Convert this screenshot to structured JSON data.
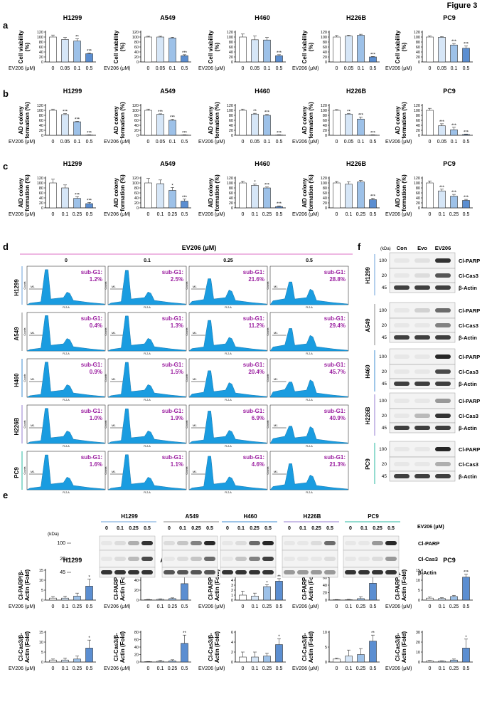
{
  "figure_title": "Figure 3",
  "colors": {
    "bar_control": "#ffffff",
    "bar_light": "#d6e6f7",
    "bar_mid": "#9dc1e8",
    "bar_dark": "#5b8ed1",
    "histogram_fill": "#1a9ce0",
    "subg1_text": "#9b1fa0",
    "pink_line": "#e8a0d8",
    "h1299": "#9cc0e6",
    "a549": "#b0b0b0",
    "h460": "#7fb2e0",
    "h226b": "#b8a8e0",
    "pc9": "#70d0c0"
  },
  "panels": {
    "a": "a",
    "b": "b",
    "c": "c",
    "d": "d",
    "e": "e",
    "f": "f"
  },
  "ev_label": "EV206 (μM)",
  "ev_header": "EV206 (μM)",
  "sig": {
    "one": "*",
    "two": "**",
    "three": "***"
  },
  "chart_data": [
    {
      "id": "a1",
      "type": "bar",
      "title": "H1299",
      "ylabel": "Cell viability (%)",
      "ylabel_lines": [
        "Cell viability",
        "(%)"
      ],
      "categories": [
        "0",
        "0.05",
        "0.1",
        "0.5"
      ],
      "values": [
        100,
        90,
        84,
        33
      ],
      "errors": [
        8,
        8,
        9,
        3
      ],
      "sig": [
        "",
        "",
        "**",
        "***"
      ],
      "ylim": [
        0,
        120
      ],
      "ticks": [
        0,
        20,
        40,
        60,
        80,
        100,
        120
      ]
    },
    {
      "id": "a2",
      "type": "bar",
      "title": "A549",
      "ylabel_lines": [
        "Cell viability",
        "(%)"
      ],
      "categories": [
        "0",
        "0.05",
        "0.1",
        "0.5"
      ],
      "values": [
        100,
        100,
        96,
        25
      ],
      "errors": [
        3,
        3,
        3,
        4
      ],
      "sig": [
        "",
        "",
        "",
        "***"
      ],
      "ylim": [
        0,
        120
      ],
      "ticks": [
        0,
        20,
        40,
        60,
        80,
        100,
        120
      ]
    },
    {
      "id": "a3",
      "type": "bar",
      "title": "H460",
      "ylabel_lines": [
        "Cell viability",
        "(%)"
      ],
      "categories": [
        "0",
        "0.05",
        "0.1",
        "0.5"
      ],
      "values": [
        100,
        89,
        88,
        25
      ],
      "errors": [
        12,
        15,
        10,
        4
      ],
      "sig": [
        "",
        "",
        "",
        "***"
      ],
      "ylim": [
        0,
        120
      ],
      "ticks": [
        0,
        20,
        40,
        60,
        80,
        100,
        120
      ]
    },
    {
      "id": "a4",
      "type": "bar",
      "title": "H226B",
      "ylabel_lines": [
        "Cell viability",
        "(%)"
      ],
      "categories": [
        "0",
        "0.05",
        "0.1",
        "0.5"
      ],
      "values": [
        100,
        104,
        107,
        20
      ],
      "errors": [
        6,
        3,
        4,
        2
      ],
      "sig": [
        "",
        "",
        "",
        "***"
      ],
      "ylim": [
        0,
        120
      ],
      "ticks": [
        0,
        20,
        40,
        60,
        80,
        100,
        120
      ]
    },
    {
      "id": "a5",
      "type": "bar",
      "title": "PC9",
      "ylabel_lines": [
        "Cell viability",
        "(%)"
      ],
      "categories": [
        "0",
        "0.05",
        "0.1",
        "0.5"
      ],
      "values": [
        100,
        99,
        68,
        55
      ],
      "errors": [
        4,
        3,
        6,
        9
      ],
      "sig": [
        "",
        "",
        "***",
        "***"
      ],
      "ylim": [
        0,
        120
      ],
      "ticks": [
        0,
        20,
        40,
        60,
        80,
        100,
        120
      ]
    },
    {
      "id": "b1",
      "type": "bar",
      "title": "H1299",
      "ylabel_lines": [
        "AD colony",
        "formation (%)"
      ],
      "categories": [
        "0",
        "0.05",
        "0.1",
        "0.5"
      ],
      "values": [
        100,
        83,
        54,
        1
      ],
      "errors": [
        5,
        4,
        2,
        1
      ],
      "sig": [
        "",
        "***",
        "***",
        "***"
      ],
      "ylim": [
        0,
        120
      ],
      "ticks": [
        0,
        20,
        40,
        60,
        80,
        100,
        120
      ]
    },
    {
      "id": "b2",
      "type": "bar",
      "title": "A549",
      "ylabel_lines": [
        "AD colony",
        "formation (%)"
      ],
      "categories": [
        "0",
        "0.05",
        "0.1",
        "0.5"
      ],
      "values": [
        100,
        84,
        60,
        1
      ],
      "errors": [
        5,
        2,
        4,
        1
      ],
      "sig": [
        "",
        "***",
        "***",
        "***"
      ],
      "ylim": [
        0,
        120
      ],
      "ticks": [
        0,
        20,
        40,
        60,
        80,
        100,
        120
      ]
    },
    {
      "id": "b3",
      "type": "bar",
      "title": "H460",
      "ylabel_lines": [
        "AD colony",
        "formation (%)"
      ],
      "categories": [
        "0",
        "0.05",
        "0.1",
        "0.5"
      ],
      "values": [
        100,
        85,
        80,
        1
      ],
      "errors": [
        5,
        3,
        4,
        1
      ],
      "sig": [
        "",
        "**",
        "***",
        "***"
      ],
      "ylim": [
        0,
        120
      ],
      "ticks": [
        0,
        20,
        40,
        60,
        80,
        100,
        120
      ]
    },
    {
      "id": "b4",
      "type": "bar",
      "title": "H226B",
      "ylabel_lines": [
        "AD colony",
        "formation (%)"
      ],
      "categories": [
        "0",
        "0.05",
        "0.1",
        "0.5"
      ],
      "values": [
        100,
        85,
        65,
        1
      ],
      "errors": [
        3,
        2,
        8,
        1
      ],
      "sig": [
        "",
        "**",
        "***",
        "***"
      ],
      "ylim": [
        0,
        120
      ],
      "ticks": [
        0,
        20,
        40,
        60,
        80,
        100,
        120
      ]
    },
    {
      "id": "b5",
      "type": "bar",
      "title": "PC9",
      "ylabel_lines": [
        "AD colony",
        "formation (%)"
      ],
      "categories": [
        "0",
        "0.05",
        "0.1",
        "0.5"
      ],
      "values": [
        100,
        38,
        22,
        3
      ],
      "errors": [
        8,
        8,
        10,
        2
      ],
      "sig": [
        "",
        "***",
        "***",
        "***"
      ],
      "ylim": [
        0,
        120
      ],
      "ticks": [
        0,
        20,
        40,
        60,
        80,
        100,
        120
      ]
    },
    {
      "id": "c1",
      "type": "bar",
      "title": "H1299",
      "ylabel_lines": [
        "AID colony",
        "formation (%)"
      ],
      "categories": [
        "0",
        "0.1",
        "0.25",
        "0.5"
      ],
      "values": [
        100,
        80,
        38,
        17
      ],
      "errors": [
        15,
        12,
        7,
        5
      ],
      "sig": [
        "",
        "",
        "***",
        "***"
      ],
      "ylim": [
        0,
        120
      ],
      "ticks": [
        0,
        20,
        40,
        60,
        80,
        100,
        120
      ]
    },
    {
      "id": "c2",
      "type": "bar",
      "title": "A549",
      "ylabel_lines": [
        "AID colony",
        "formation (%)"
      ],
      "categories": [
        "0",
        "0.1",
        "0.25",
        "0.5"
      ],
      "values": [
        100,
        97,
        70,
        27
      ],
      "errors": [
        18,
        15,
        12,
        8
      ],
      "sig": [
        "",
        "",
        "*",
        "***"
      ],
      "ylim": [
        0,
        120
      ],
      "ticks": [
        0,
        20,
        40,
        60,
        80,
        100,
        120
      ]
    },
    {
      "id": "c3",
      "type": "bar",
      "title": "H460",
      "ylabel_lines": [
        "AID colony",
        "formation (%)"
      ],
      "categories": [
        "0",
        "0.1",
        "0.25",
        "0.5"
      ],
      "values": [
        100,
        90,
        80,
        5
      ],
      "errors": [
        7,
        6,
        4,
        3
      ],
      "sig": [
        "",
        "*",
        "***",
        "***"
      ],
      "ylim": [
        0,
        120
      ],
      "ticks": [
        0,
        20,
        40,
        60,
        80,
        100,
        120
      ]
    },
    {
      "id": "c4",
      "type": "bar",
      "title": "H226B",
      "ylabel_lines": [
        "AID colony",
        "formation (%)"
      ],
      "categories": [
        "0",
        "0.1",
        "0.25",
        "0.5"
      ],
      "values": [
        100,
        95,
        104,
        33
      ],
      "errors": [
        6,
        10,
        6,
        6
      ],
      "sig": [
        "",
        "",
        "",
        "***"
      ],
      "ylim": [
        0,
        120
      ],
      "ticks": [
        0,
        20,
        40,
        60,
        80,
        100,
        120
      ]
    },
    {
      "id": "c5",
      "type": "bar",
      "title": "PC9",
      "ylabel_lines": [
        "AID colony",
        "formation (%)"
      ],
      "categories": [
        "0",
        "0.1",
        "0.25",
        "0.5"
      ],
      "values": [
        100,
        68,
        47,
        30
      ],
      "errors": [
        8,
        7,
        7,
        4
      ],
      "sig": [
        "",
        "***",
        "***",
        "***"
      ],
      "ylim": [
        0,
        120
      ],
      "ticks": [
        0,
        20,
        40,
        60,
        80,
        100,
        120
      ]
    },
    {
      "id": "e1",
      "type": "bar",
      "title": "H1299",
      "ylabel_lines": [
        "Cl-PARP/β-",
        "Actin (Fold)"
      ],
      "categories": [
        "0",
        "0.1",
        "0.25",
        "0.5"
      ],
      "values": [
        1,
        1,
        2,
        7
      ],
      "errors": [
        0.8,
        1,
        1.5,
        3.5
      ],
      "sig": [
        "",
        "",
        "",
        "*"
      ],
      "ylim": [
        0,
        15
      ],
      "ticks": [
        0,
        5,
        10,
        15
      ]
    },
    {
      "id": "e2",
      "type": "bar",
      "title": "A549",
      "ylabel_lines": [
        "Cl-PARP/β-",
        "Actin (Fold)"
      ],
      "categories": [
        "0",
        "0.1",
        "0.25",
        "0.5"
      ],
      "values": [
        1,
        1.5,
        3,
        33
      ],
      "errors": [
        0.5,
        1,
        1.5,
        14
      ],
      "sig": [
        "",
        "",
        "",
        "**"
      ],
      "ylim": [
        0,
        60
      ],
      "ticks": [
        0,
        20,
        40,
        60
      ]
    },
    {
      "id": "e3",
      "type": "bar",
      "title": "H460",
      "ylabel_lines": [
        "Cl-PARP/β-",
        "Actin (Fold)"
      ],
      "categories": [
        "0",
        "0.1",
        "0.25",
        "0.5"
      ],
      "values": [
        1,
        0.8,
        2.7,
        3.8
      ],
      "errors": [
        0.8,
        0.6,
        0.4,
        0.5
      ],
      "sig": [
        "",
        "",
        "*",
        "**"
      ],
      "ylim": [
        0,
        6
      ],
      "ticks": [
        0,
        1,
        2,
        3,
        4,
        5,
        6
      ]
    },
    {
      "id": "e4",
      "type": "bar",
      "title": "H226B",
      "ylabel_lines": [
        "Cl-PARP/β-",
        "Actin (Fold)"
      ],
      "categories": [
        "0",
        "0.1",
        "0.25",
        "0.5"
      ],
      "values": [
        1,
        1,
        4,
        45
      ],
      "errors": [
        0.5,
        1,
        5,
        18
      ],
      "sig": [
        "",
        "",
        "",
        "**"
      ],
      "ylim": [
        0,
        80
      ],
      "ticks": [
        0,
        20,
        40,
        60,
        80
      ]
    },
    {
      "id": "e5",
      "type": "bar",
      "title": "PC9",
      "ylabel_lines": [
        "Cl-PARP/β-",
        "Actin (Fold)"
      ],
      "categories": [
        "0",
        "0.1",
        "0.25",
        "0.5"
      ],
      "values": [
        1,
        0.8,
        1.8,
        11.5
      ],
      "errors": [
        0.5,
        0.4,
        0.6,
        1.5
      ],
      "sig": [
        "",
        "",
        "",
        "***"
      ],
      "ylim": [
        0,
        15
      ],
      "ticks": [
        0,
        5,
        10,
        15
      ]
    },
    {
      "id": "f1",
      "type": "bar",
      "title": "",
      "ylabel_lines": [
        "Cl-Cas3/β-",
        "Actin (Fold)"
      ],
      "categories": [
        "0",
        "0.1",
        "0.25",
        "0.5"
      ],
      "values": [
        1,
        1,
        1.5,
        7
      ],
      "errors": [
        0.5,
        1,
        1.5,
        4
      ],
      "sig": [
        "",
        "",
        "",
        "*"
      ],
      "ylim": [
        0,
        15
      ],
      "ticks": [
        0,
        5,
        10,
        15
      ]
    },
    {
      "id": "f2",
      "type": "bar",
      "title": "",
      "ylabel_lines": [
        "Cl-Cas3/β-",
        "Actin (Fold)"
      ],
      "categories": [
        "0",
        "0.1",
        "0.25",
        "0.5"
      ],
      "values": [
        1,
        2,
        3,
        50
      ],
      "errors": [
        0.5,
        2,
        3,
        22
      ],
      "sig": [
        "",
        "",
        "",
        "**"
      ],
      "ylim": [
        0,
        80
      ],
      "ticks": [
        0,
        20,
        40,
        60,
        80
      ]
    },
    {
      "id": "f3",
      "type": "bar",
      "title": "",
      "ylabel_lines": [
        "Cl-Cas3/β-",
        "Actin (Fold)"
      ],
      "categories": [
        "0",
        "0.1",
        "0.25",
        "0.5"
      ],
      "values": [
        1,
        1,
        1.2,
        3.5
      ],
      "errors": [
        1,
        1,
        0.6,
        1.2
      ],
      "sig": [
        "",
        "",
        "",
        "*"
      ],
      "ylim": [
        0,
        6
      ],
      "ticks": [
        0,
        2,
        4,
        6
      ]
    },
    {
      "id": "f4",
      "type": "bar",
      "title": "",
      "ylabel_lines": [
        "Cl-Cas3/β-",
        "Actin (Fold)"
      ],
      "categories": [
        "0",
        "0.1",
        "0.25",
        "0.5"
      ],
      "values": [
        1,
        2,
        2.5,
        7
      ],
      "errors": [
        0.3,
        2,
        2,
        2
      ],
      "sig": [
        "",
        "",
        "",
        "**"
      ],
      "ylim": [
        0,
        10
      ],
      "ticks": [
        0,
        5,
        10
      ]
    },
    {
      "id": "f5",
      "type": "bar",
      "title": "",
      "ylabel_lines": [
        "Cl-Cas3/β-",
        "Actin (Fold)"
      ],
      "categories": [
        "0",
        "0.1",
        "0.25",
        "0.5"
      ],
      "values": [
        1,
        0.8,
        2,
        14
      ],
      "errors": [
        0.5,
        0.4,
        1,
        9
      ],
      "sig": [
        "",
        "",
        "",
        "*"
      ],
      "ylim": [
        0,
        30
      ],
      "ticks": [
        0,
        10,
        20,
        30
      ]
    }
  ],
  "flow": {
    "header": "EV206 (μM)",
    "doses": [
      "0",
      "0.1",
      "0.25",
      "0.5"
    ],
    "label": "sub-G1:",
    "x_axis_label": "FL2-A",
    "y_axis_label": "Counts",
    "marker": "M1",
    "tick_labels": [
      "0",
      "200",
      "400",
      "600",
      "800",
      "1000"
    ],
    "rows": [
      {
        "cell": "H1299",
        "values": [
          "1.2%",
          "2.5%",
          "21.6%",
          "28.8%"
        ]
      },
      {
        "cell": "A549",
        "values": [
          "0.4%",
          "1.3%",
          "11.2%",
          "29.4%"
        ]
      },
      {
        "cell": "H460",
        "values": [
          "0.9%",
          "1.5%",
          "20.4%",
          "45.7%"
        ]
      },
      {
        "cell": "H226B",
        "values": [
          "1.0%",
          "1.9%",
          "6.9%",
          "40.9%"
        ]
      },
      {
        "cell": "PC9",
        "values": [
          "1.6%",
          "1.1%",
          "4.6%",
          "21.3%"
        ]
      }
    ]
  },
  "blot_f": {
    "kda": "(kDa)",
    "columns": [
      "Con",
      "Evo",
      "EV206"
    ],
    "groups": [
      {
        "cell": "H1299",
        "markers": [
          "100",
          "20",
          "45"
        ],
        "labels": [
          "Cl-PARP",
          "Cl-Cas3",
          "β-Actin"
        ]
      },
      {
        "cell": "A549",
        "markers": [
          "100",
          "20",
          "45"
        ],
        "labels": [
          "Cl-PARP",
          "Cl-Cas3",
          "β-Actin"
        ]
      },
      {
        "cell": "H460",
        "markers": [
          "100",
          "20",
          "45"
        ],
        "labels": [
          "Cl-PARP",
          "Cl-Cas3",
          "β-Actin"
        ]
      },
      {
        "cell": "H226B",
        "markers": [
          "100",
          "20",
          "45"
        ],
        "labels": [
          "Cl-PARP",
          "Cl-Cas3",
          "β-Actin"
        ]
      },
      {
        "cell": "PC9",
        "markers": [
          "100",
          "20",
          "45"
        ],
        "labels": [
          "Cl-PARP",
          "Cl-Cas3",
          "β-Actin"
        ]
      }
    ]
  },
  "blot_e": {
    "kda": "(kDa)",
    "cells": [
      "H1299",
      "A549",
      "H460",
      "H226B",
      "PC9"
    ],
    "doses": [
      "0",
      "0.1",
      "0.25",
      "0.5"
    ],
    "markers": [
      "100",
      "20",
      "45"
    ],
    "labels": [
      "Cl-PARP",
      "Cl-Cas3",
      "β-Actin"
    ],
    "ev_label": "EV206 (μM)"
  }
}
